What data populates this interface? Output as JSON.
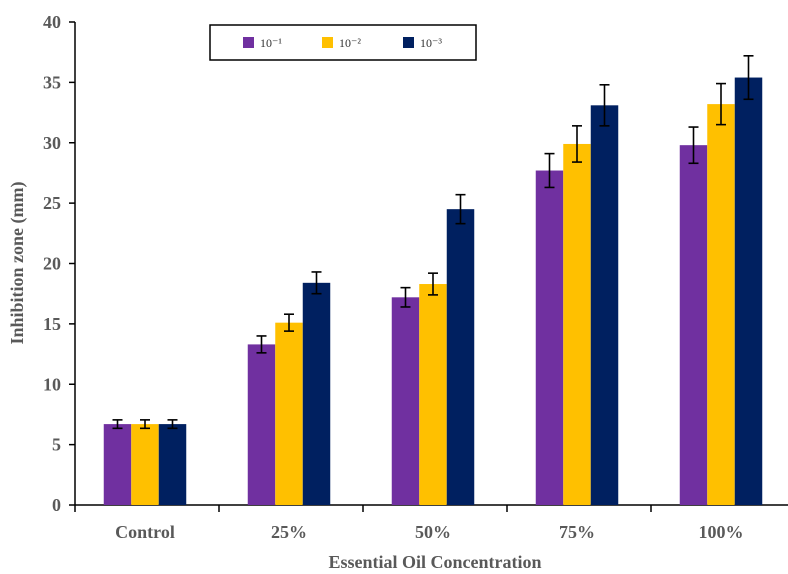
{
  "chart_data": {
    "type": "bar",
    "title": "",
    "xlabel": "Essential Oil Concentration",
    "ylabel": "Inhibition zone (mm)",
    "ylim": [
      0,
      40
    ],
    "yticks": [
      0,
      5,
      10,
      15,
      20,
      25,
      30,
      35,
      40
    ],
    "categories": [
      "Control",
      "25%",
      "50%",
      "75%",
      "100%"
    ],
    "series": [
      {
        "name": "10⁻¹",
        "color": "#7030A0",
        "values": [
          6.7,
          13.3,
          17.2,
          27.7,
          29.8
        ],
        "errors": [
          0.35,
          0.7,
          0.8,
          1.4,
          1.5
        ]
      },
      {
        "name": "10⁻²",
        "color": "#FFC000",
        "values": [
          6.7,
          15.1,
          18.3,
          29.9,
          33.2
        ],
        "errors": [
          0.35,
          0.7,
          0.9,
          1.5,
          1.7
        ]
      },
      {
        "name": "10⁻³",
        "color": "#002060",
        "values": [
          6.7,
          18.4,
          24.5,
          33.1,
          35.4
        ],
        "errors": [
          0.35,
          0.9,
          1.2,
          1.7,
          1.8
        ]
      }
    ],
    "legend_position": "top"
  }
}
